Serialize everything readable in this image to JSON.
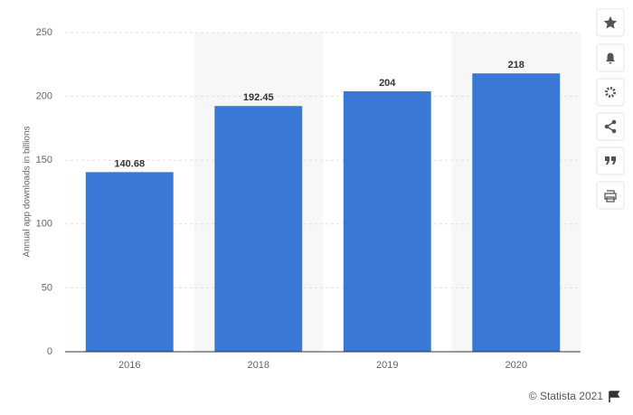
{
  "chart_data": {
    "type": "bar",
    "y_label": "Annual app downloads in billions",
    "categories": [
      "2016",
      "2018",
      "2019",
      "2020"
    ],
    "values": [
      140.68,
      192.45,
      204,
      218
    ],
    "color": "#3a78d8",
    "ylim": [
      0,
      250
    ],
    "yticks": [
      0,
      50,
      100,
      150,
      200,
      250
    ],
    "grid": true,
    "credit": "© Statista 2021"
  }
}
